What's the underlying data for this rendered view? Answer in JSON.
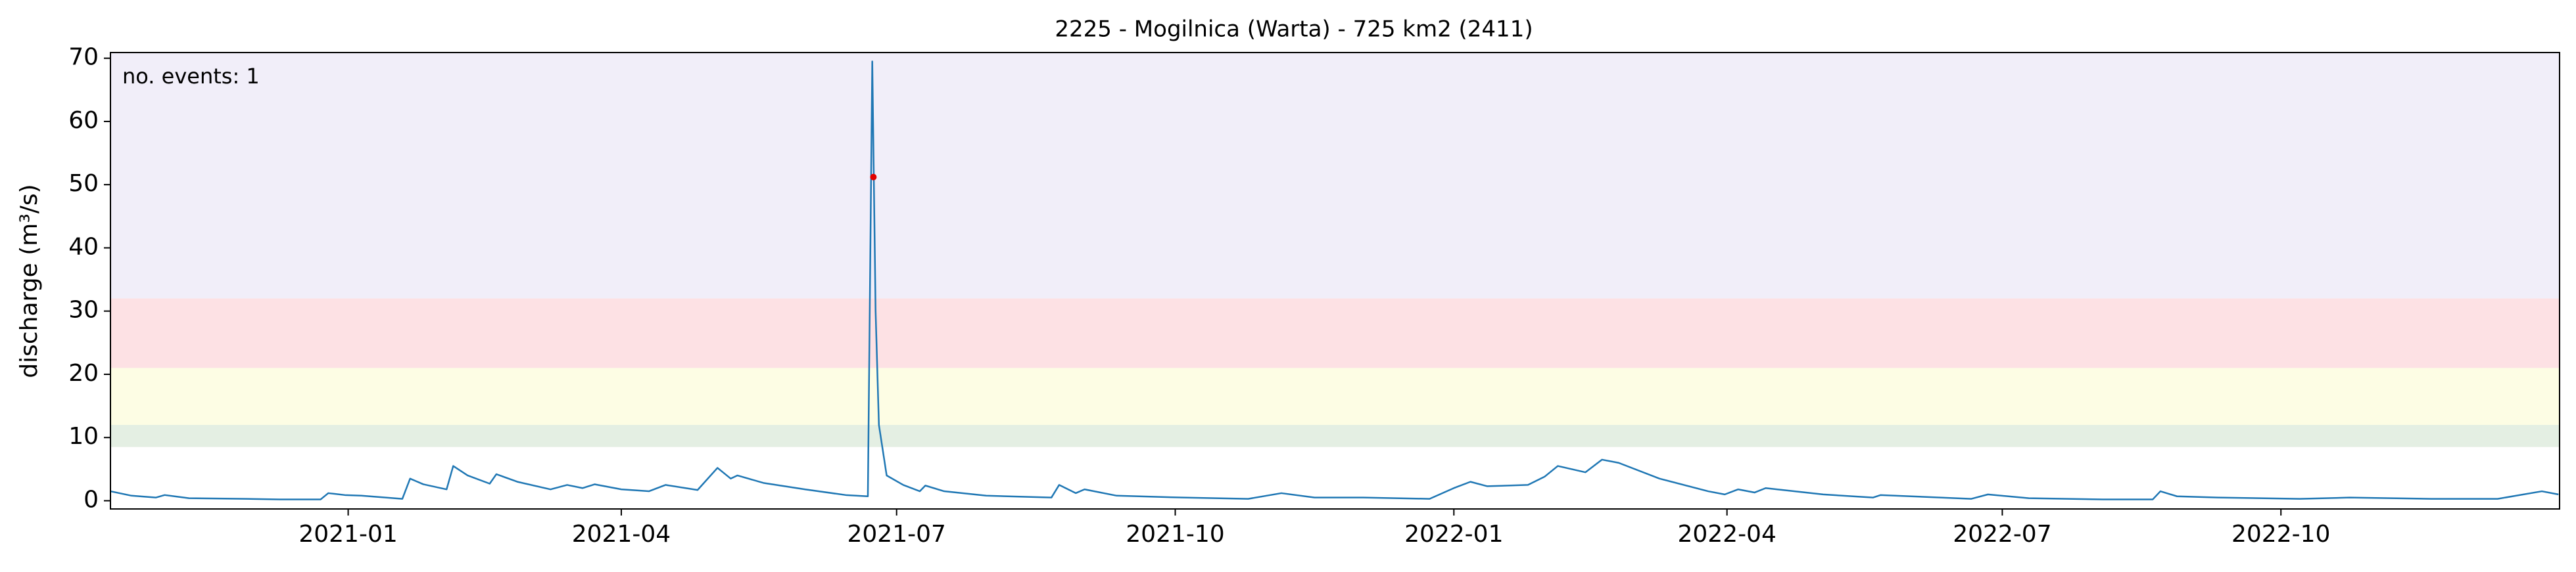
{
  "chart_data": {
    "type": "line",
    "title": "2225 - Mogilnica (Warta) - 725 km2 (2411)",
    "ylabel": "discharge (m³/s)",
    "annotation": "no. events: 1",
    "annotation_color": "#e00000",
    "xlim": [
      2020.785,
      2023.0
    ],
    "ylim": [
      -1.3,
      70.9
    ],
    "xticks": [
      {
        "value": 2021.0,
        "label": "2021-01"
      },
      {
        "value": 2021.247,
        "label": "2021-04"
      },
      {
        "value": 2021.496,
        "label": "2021-07"
      },
      {
        "value": 2021.748,
        "label": "2021-10"
      },
      {
        "value": 2022.0,
        "label": "2022-01"
      },
      {
        "value": 2022.247,
        "label": "2022-04"
      },
      {
        "value": 2022.496,
        "label": "2022-07"
      },
      {
        "value": 2022.748,
        "label": "2022-10"
      }
    ],
    "yticks": [
      0,
      10,
      20,
      30,
      40,
      50,
      60,
      70
    ],
    "grid": false,
    "bands": [
      {
        "y0": 8.5,
        "y1": 12,
        "color": "#e4efe3"
      },
      {
        "y0": 12,
        "y1": 21,
        "color": "#fdfde4"
      },
      {
        "y0": 21,
        "y1": 32,
        "color": "#fde1e4"
      },
      {
        "y0": 32,
        "y1": 70.9,
        "color": "#f1eef9"
      }
    ],
    "x": [
      2020.785,
      2020.804,
      2020.826,
      2020.834,
      2020.856,
      2020.908,
      2020.938,
      2020.975,
      2020.982,
      2020.997,
      2021.012,
      2021.049,
      2021.056,
      2021.068,
      2021.089,
      2021.095,
      2021.108,
      2021.128,
      2021.134,
      2021.153,
      2021.183,
      2021.198,
      2021.212,
      2021.223,
      2021.247,
      2021.272,
      2021.287,
      2021.316,
      2021.334,
      2021.346,
      2021.352,
      2021.376,
      2021.413,
      2021.45,
      2021.47,
      2021.474,
      2021.477,
      2021.48,
      2021.487,
      2021.502,
      2021.517,
      2021.522,
      2021.539,
      2021.577,
      2021.636,
      2021.643,
      2021.658,
      2021.666,
      2021.695,
      2021.755,
      2021.814,
      2021.844,
      2021.874,
      2021.918,
      2021.978,
      2022.0,
      2022.015,
      2022.03,
      2022.067,
      2022.082,
      2022.094,
      2022.119,
      2022.134,
      2022.149,
      2022.186,
      2022.23,
      2022.245,
      2022.257,
      2022.272,
      2022.282,
      2022.334,
      2022.379,
      2022.386,
      2022.468,
      2022.483,
      2022.52,
      2022.587,
      2022.632,
      2022.639,
      2022.654,
      2022.691,
      2022.765,
      2022.81,
      2022.884,
      2022.944,
      2022.984,
      2022.999
    ],
    "series": [
      {
        "color": "#1f77b4",
        "values": [
          1.5,
          0.8,
          0.5,
          0.9,
          0.4,
          0.3,
          0.2,
          0.2,
          1.2,
          0.9,
          0.8,
          0.3,
          3.5,
          2.6,
          1.8,
          5.5,
          4,
          2.7,
          4.2,
          3,
          1.8,
          2.5,
          2,
          2.6,
          1.8,
          1.5,
          2.5,
          1.7,
          5.2,
          3.5,
          4,
          2.8,
          1.8,
          0.9,
          0.7,
          69.5,
          30,
          12,
          4,
          2.5,
          1.5,
          2.4,
          1.5,
          0.8,
          0.5,
          2.5,
          1.2,
          1.8,
          0.8,
          0.5,
          0.3,
          1.2,
          0.5,
          0.5,
          0.3,
          2,
          3,
          2.3,
          2.5,
          3.8,
          5.5,
          4.5,
          6.5,
          6,
          3.5,
          1.5,
          1,
          1.8,
          1.3,
          2,
          1,
          0.5,
          0.9,
          0.3,
          1,
          0.4,
          0.2,
          0.2,
          1.5,
          0.7,
          0.5,
          0.3,
          0.5,
          0.3,
          0.3,
          1.5,
          1
        ]
      }
    ],
    "events": {
      "x": [
        2021.475
      ],
      "values": [
        51.2
      ],
      "color": "#e00000"
    }
  }
}
